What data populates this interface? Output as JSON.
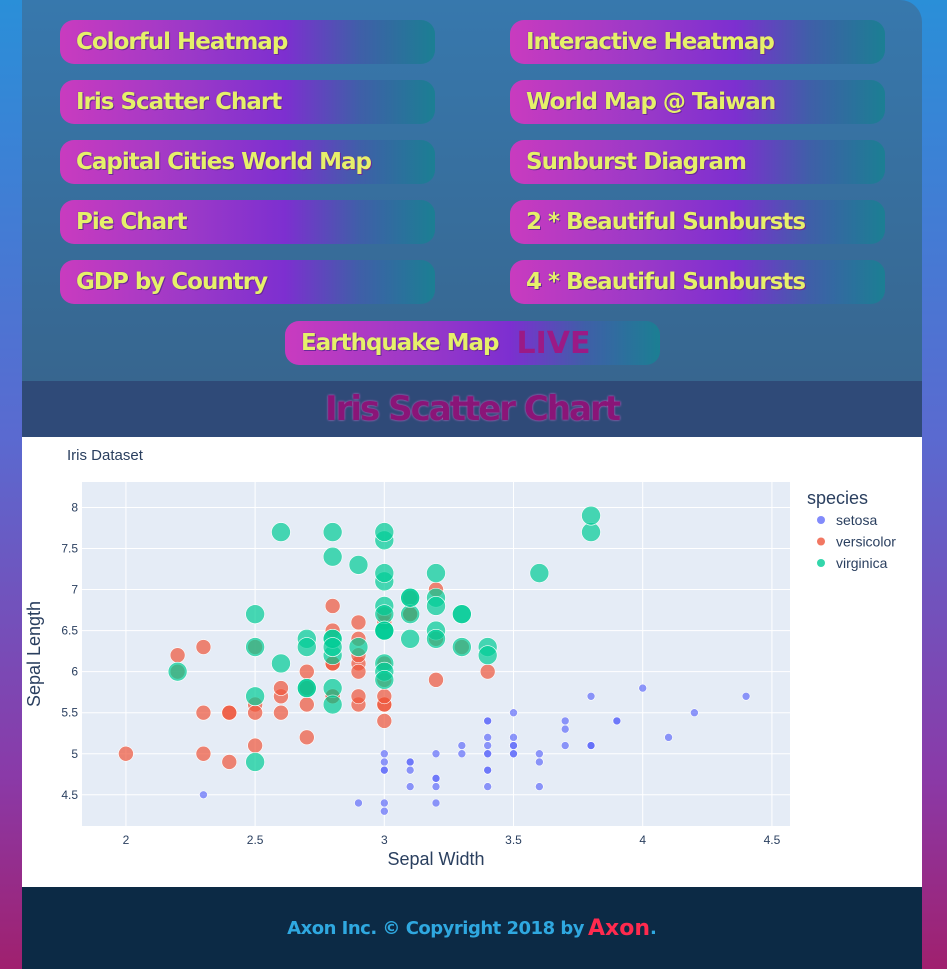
{
  "nav": {
    "buttons": [
      {
        "label": "Colorful Heatmap"
      },
      {
        "label": "Interactive Heatmap"
      },
      {
        "label": "Iris Scatter Chart"
      },
      {
        "label": "World Map @ Taiwan"
      },
      {
        "label": "Capital Cities World Map"
      },
      {
        "label": "Sunburst Diagram"
      },
      {
        "label": "Pie Chart"
      },
      {
        "label": "2 * Beautiful Sunbursts"
      },
      {
        "label": "GDP by Country"
      },
      {
        "label": "4 * Beautiful Sunbursts"
      }
    ],
    "earthquake": {
      "label": "Earthquake Map",
      "badge": "LIVE"
    }
  },
  "page_title": "Iris Scatter Chart",
  "footer": {
    "text": "Axon Inc. © Copyright 2018 by ",
    "brand": "Axon",
    "end": "."
  },
  "colors": {
    "setosa": "#636efa",
    "versicolor": "#ef553b",
    "virginica": "#00cc96"
  },
  "chart_data": {
    "type": "scatter",
    "title": "Iris Dataset",
    "xlabel": "Sepal Width",
    "ylabel": "Sepal Length",
    "xlim": [
      1.83,
      4.57
    ],
    "ylim": [
      4.12,
      8.31
    ],
    "xticks": [
      "2",
      "2.5",
      "3",
      "3.5",
      "4",
      "4.5"
    ],
    "yticks": [
      "4.5",
      "5",
      "5.5",
      "6",
      "6.5",
      "7",
      "7.5",
      "8"
    ],
    "legend_title": "species",
    "legend_position": "right",
    "series": [
      {
        "name": "setosa",
        "size": "small",
        "points": [
          [
            3.5,
            5.1
          ],
          [
            3.0,
            4.9
          ],
          [
            3.2,
            4.7
          ],
          [
            3.1,
            4.6
          ],
          [
            3.6,
            5.0
          ],
          [
            3.9,
            5.4
          ],
          [
            3.4,
            4.6
          ],
          [
            3.4,
            5.0
          ],
          [
            2.9,
            4.4
          ],
          [
            3.1,
            4.9
          ],
          [
            3.7,
            5.4
          ],
          [
            3.4,
            4.8
          ],
          [
            3.0,
            4.8
          ],
          [
            3.0,
            4.3
          ],
          [
            4.0,
            5.8
          ],
          [
            4.4,
            5.7
          ],
          [
            3.9,
            5.4
          ],
          [
            3.5,
            5.1
          ],
          [
            3.8,
            5.7
          ],
          [
            3.8,
            5.1
          ],
          [
            3.4,
            5.4
          ],
          [
            3.7,
            5.1
          ],
          [
            3.6,
            4.6
          ],
          [
            3.3,
            5.1
          ],
          [
            3.4,
            4.8
          ],
          [
            3.0,
            5.0
          ],
          [
            3.4,
            5.0
          ],
          [
            3.5,
            5.2
          ],
          [
            3.4,
            5.2
          ],
          [
            3.2,
            4.7
          ],
          [
            3.1,
            4.8
          ],
          [
            3.4,
            5.4
          ],
          [
            4.1,
            5.2
          ],
          [
            4.2,
            5.5
          ],
          [
            3.1,
            4.9
          ],
          [
            3.2,
            5.0
          ],
          [
            3.5,
            5.5
          ],
          [
            3.6,
            4.9
          ],
          [
            3.0,
            4.4
          ],
          [
            3.4,
            5.1
          ],
          [
            3.5,
            5.0
          ],
          [
            2.3,
            4.5
          ],
          [
            3.2,
            4.4
          ],
          [
            3.5,
            5.0
          ],
          [
            3.8,
            5.1
          ],
          [
            3.0,
            4.8
          ],
          [
            3.8,
            5.1
          ],
          [
            3.2,
            4.6
          ],
          [
            3.7,
            5.3
          ],
          [
            3.3,
            5.0
          ]
        ]
      },
      {
        "name": "versicolor",
        "size": "medium",
        "points": [
          [
            3.2,
            7.0
          ],
          [
            3.2,
            6.4
          ],
          [
            3.1,
            6.9
          ],
          [
            2.3,
            5.5
          ],
          [
            2.8,
            6.5
          ],
          [
            2.8,
            5.7
          ],
          [
            3.3,
            6.3
          ],
          [
            2.4,
            4.9
          ],
          [
            2.9,
            6.6
          ],
          [
            2.7,
            5.2
          ],
          [
            2.0,
            5.0
          ],
          [
            3.0,
            5.9
          ],
          [
            2.2,
            6.0
          ],
          [
            2.9,
            6.1
          ],
          [
            2.9,
            5.6
          ],
          [
            3.1,
            6.7
          ],
          [
            3.0,
            5.6
          ],
          [
            2.7,
            5.8
          ],
          [
            2.2,
            6.2
          ],
          [
            2.5,
            5.6
          ],
          [
            3.2,
            5.9
          ],
          [
            2.8,
            6.1
          ],
          [
            2.5,
            6.3
          ],
          [
            2.8,
            6.1
          ],
          [
            2.9,
            6.4
          ],
          [
            3.0,
            6.6
          ],
          [
            2.8,
            6.8
          ],
          [
            3.0,
            6.7
          ],
          [
            2.9,
            6.0
          ],
          [
            2.6,
            5.7
          ],
          [
            2.4,
            5.5
          ],
          [
            2.4,
            5.5
          ],
          [
            2.7,
            5.8
          ],
          [
            2.7,
            6.0
          ],
          [
            3.0,
            5.4
          ],
          [
            3.4,
            6.0
          ],
          [
            3.1,
            6.7
          ],
          [
            2.3,
            6.3
          ],
          [
            3.0,
            5.6
          ],
          [
            2.5,
            5.5
          ],
          [
            2.6,
            5.5
          ],
          [
            3.0,
            6.1
          ],
          [
            2.6,
            5.8
          ],
          [
            2.3,
            5.0
          ],
          [
            2.7,
            5.6
          ],
          [
            3.0,
            5.7
          ],
          [
            2.9,
            5.7
          ],
          [
            2.9,
            6.2
          ],
          [
            2.5,
            5.1
          ],
          [
            2.8,
            5.7
          ]
        ]
      },
      {
        "name": "virginica",
        "size": "large",
        "points": [
          [
            3.3,
            6.3
          ],
          [
            2.7,
            5.8
          ],
          [
            3.0,
            7.1
          ],
          [
            2.9,
            6.3
          ],
          [
            3.0,
            6.5
          ],
          [
            3.0,
            7.6
          ],
          [
            2.5,
            4.9
          ],
          [
            2.9,
            7.3
          ],
          [
            2.5,
            6.7
          ],
          [
            3.6,
            7.2
          ],
          [
            3.2,
            6.5
          ],
          [
            2.7,
            6.4
          ],
          [
            3.0,
            6.8
          ],
          [
            2.5,
            5.7
          ],
          [
            2.8,
            5.8
          ],
          [
            3.2,
            6.4
          ],
          [
            3.0,
            6.5
          ],
          [
            3.8,
            7.7
          ],
          [
            2.6,
            7.7
          ],
          [
            2.2,
            6.0
          ],
          [
            3.2,
            6.9
          ],
          [
            2.8,
            5.6
          ],
          [
            2.8,
            7.7
          ],
          [
            2.7,
            6.3
          ],
          [
            3.3,
            6.7
          ],
          [
            3.2,
            7.2
          ],
          [
            2.8,
            6.2
          ],
          [
            3.0,
            6.1
          ],
          [
            2.8,
            6.4
          ],
          [
            3.0,
            7.2
          ],
          [
            2.8,
            7.4
          ],
          [
            3.8,
            7.9
          ],
          [
            2.8,
            6.4
          ],
          [
            2.8,
            6.3
          ],
          [
            2.6,
            6.1
          ],
          [
            3.0,
            7.7
          ],
          [
            3.4,
            6.3
          ],
          [
            3.1,
            6.4
          ],
          [
            3.0,
            6.0
          ],
          [
            3.1,
            6.9
          ],
          [
            3.1,
            6.7
          ],
          [
            3.1,
            6.9
          ],
          [
            2.7,
            5.8
          ],
          [
            3.2,
            6.8
          ],
          [
            3.3,
            6.7
          ],
          [
            3.0,
            6.7
          ],
          [
            2.5,
            6.3
          ],
          [
            3.0,
            6.5
          ],
          [
            3.4,
            6.2
          ],
          [
            3.0,
            5.9
          ]
        ]
      }
    ]
  }
}
